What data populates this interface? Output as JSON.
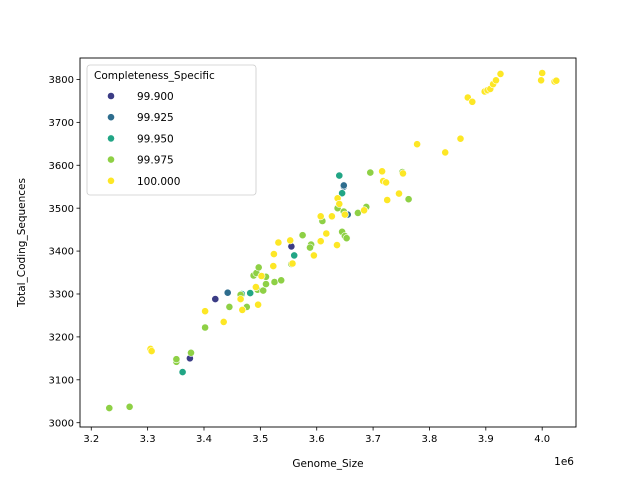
{
  "chart_data": {
    "type": "scatter",
    "title": "",
    "xlabel": "Genome_Size",
    "ylabel": "Total_Coding_Sequences",
    "x_offset_label": "1e6",
    "xlim": [
      3180000,
      4060000
    ],
    "ylim": [
      2990000,
      3850
    ],
    "grid": false,
    "legend": {
      "title": "Completeness_Specific",
      "placement": "top-left",
      "entries": [
        {
          "label": "99.900",
          "color": "#3b3c85"
        },
        {
          "label": "99.925",
          "color": "#2e6d8e"
        },
        {
          "label": "99.950",
          "color": "#21a585"
        },
        {
          "label": "99.975",
          "color": "#8ed045"
        },
        {
          "label": "100.000",
          "color": "#fde725"
        }
      ]
    },
    "x_ticks": [
      {
        "value": 3200000,
        "label": "3.2"
      },
      {
        "value": 3300000,
        "label": "3.3"
      },
      {
        "value": 3400000,
        "label": "3.4"
      },
      {
        "value": 3500000,
        "label": "3.5"
      },
      {
        "value": 3600000,
        "label": "3.6"
      },
      {
        "value": 3700000,
        "label": "3.7"
      },
      {
        "value": 3800000,
        "label": "3.8"
      },
      {
        "value": 3900000,
        "label": "3.9"
      },
      {
        "value": 4000000,
        "label": "4.0"
      }
    ],
    "y_ticks": [
      {
        "value": 3000,
        "label": "3000"
      },
      {
        "value": 3100,
        "label": "3100"
      },
      {
        "value": 3200,
        "label": "3200"
      },
      {
        "value": 3300,
        "label": "3300"
      },
      {
        "value": 3400,
        "label": "3400"
      },
      {
        "value": 3500,
        "label": "3500"
      },
      {
        "value": 3600,
        "label": "3600"
      },
      {
        "value": 3700,
        "label": "3700"
      },
      {
        "value": 3800,
        "label": "3800"
      }
    ],
    "series": [
      {
        "completeness": "99.900",
        "points": [
          [
            3375000,
            3150
          ],
          [
            3420000,
            3288
          ],
          [
            3555000,
            3411
          ]
        ]
      },
      {
        "completeness": "99.925",
        "points": [
          [
            3442000,
            3303
          ],
          [
            3648000,
            3550
          ],
          [
            3648000,
            3553
          ],
          [
            3655000,
            3485
          ]
        ]
      },
      {
        "completeness": "99.950",
        "points": [
          [
            3362000,
            3118
          ],
          [
            3467000,
            3300
          ],
          [
            3482000,
            3302
          ],
          [
            3560000,
            3390
          ],
          [
            3640000,
            3576
          ],
          [
            3645000,
            3535
          ]
        ]
      },
      {
        "completeness": "99.975",
        "points": [
          [
            3232000,
            3034
          ],
          [
            3268000,
            3037
          ],
          [
            3351000,
            3142
          ],
          [
            3351000,
            3148
          ],
          [
            3377000,
            3163
          ],
          [
            3402000,
            3222
          ],
          [
            3445000,
            3270
          ],
          [
            3465000,
            3298
          ],
          [
            3476000,
            3270
          ],
          [
            3488000,
            3343
          ],
          [
            3493000,
            3349
          ],
          [
            3497000,
            3362
          ],
          [
            3495000,
            3310
          ],
          [
            3505000,
            3308
          ],
          [
            3510000,
            3323
          ],
          [
            3510000,
            3340
          ],
          [
            3525000,
            3328
          ],
          [
            3537000,
            3332
          ],
          [
            3555000,
            3370
          ],
          [
            3575000,
            3437
          ],
          [
            3590000,
            3415
          ],
          [
            3588000,
            3408
          ],
          [
            3610000,
            3470
          ],
          [
            3637000,
            3500
          ],
          [
            3645000,
            3445
          ],
          [
            3650000,
            3435
          ],
          [
            3653000,
            3430
          ],
          [
            3648000,
            3492
          ],
          [
            3673000,
            3489
          ],
          [
            3688000,
            3503
          ],
          [
            3695000,
            3583
          ],
          [
            3752000,
            3584
          ],
          [
            3763000,
            3521
          ]
        ]
      },
      {
        "completeness": "100.000",
        "points": [
          [
            3305000,
            3172
          ],
          [
            3307000,
            3167
          ],
          [
            3402000,
            3260
          ],
          [
            3435000,
            3235
          ],
          [
            3465000,
            3288
          ],
          [
            3468000,
            3263
          ],
          [
            3496000,
            3275
          ],
          [
            3492000,
            3316
          ],
          [
            3502000,
            3342
          ],
          [
            3523000,
            3365
          ],
          [
            3524000,
            3393
          ],
          [
            3532000,
            3420
          ],
          [
            3553000,
            3425
          ],
          [
            3557000,
            3371
          ],
          [
            3595000,
            3390
          ],
          [
            3607000,
            3423
          ],
          [
            3607000,
            3481
          ],
          [
            3617000,
            3441
          ],
          [
            3627000,
            3481
          ],
          [
            3636000,
            3414
          ],
          [
            3637000,
            3523
          ],
          [
            3640000,
            3510
          ],
          [
            3650000,
            3485
          ],
          [
            3684000,
            3495
          ],
          [
            3716000,
            3586
          ],
          [
            3718000,
            3563
          ],
          [
            3723000,
            3560
          ],
          [
            3725000,
            3519
          ],
          [
            3746000,
            3534
          ],
          [
            3753000,
            3581
          ],
          [
            3778000,
            3649
          ],
          [
            3828000,
            3630
          ],
          [
            3855000,
            3662
          ],
          [
            3868000,
            3758
          ],
          [
            3876000,
            3748
          ],
          [
            3898000,
            3772
          ],
          [
            3903000,
            3775
          ],
          [
            3908000,
            3778
          ],
          [
            3913000,
            3789
          ],
          [
            3918000,
            3798
          ],
          [
            3926000,
            3813
          ],
          [
            3998000,
            3798
          ],
          [
            4000000,
            3815
          ],
          [
            4022000,
            3795
          ],
          [
            4025000,
            3797
          ]
        ]
      }
    ]
  }
}
